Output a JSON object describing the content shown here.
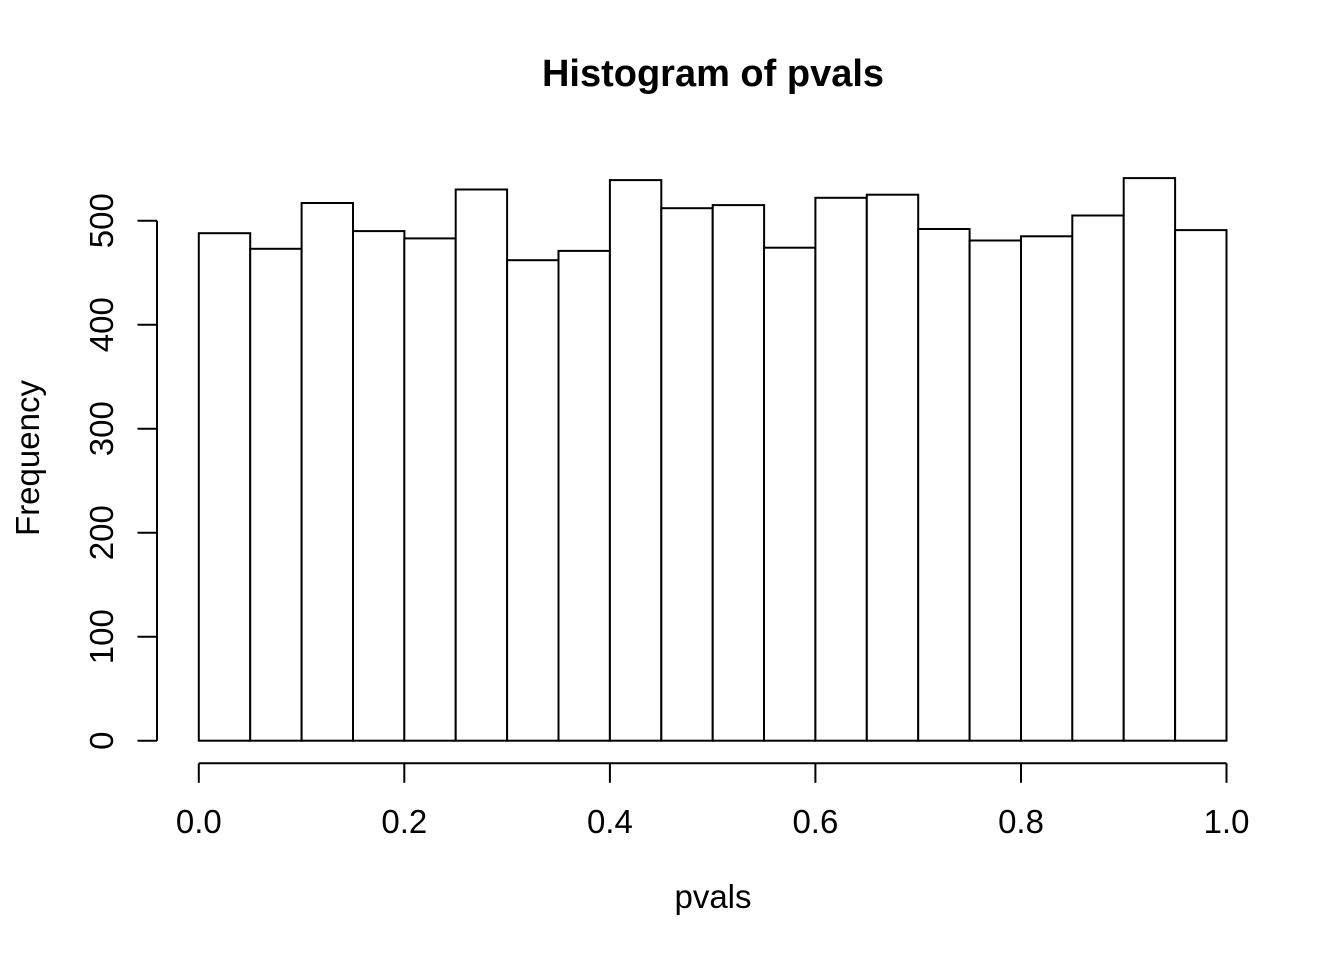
{
  "figure": {
    "background": "#ffffff",
    "text_color": "#000000"
  },
  "chart_data": {
    "type": "bar",
    "subtype": "histogram",
    "title": "Histogram of pvals",
    "xlabel": "pvals",
    "ylabel": "Frequency",
    "bin_edges": [
      0.0,
      0.05,
      0.1,
      0.15,
      0.2,
      0.25,
      0.3,
      0.35,
      0.4,
      0.45,
      0.5,
      0.55,
      0.6,
      0.65,
      0.7,
      0.75,
      0.8,
      0.85,
      0.9,
      0.95,
      1.0
    ],
    "counts": [
      488,
      473,
      517,
      490,
      483,
      530,
      462,
      471,
      539,
      512,
      515,
      474,
      522,
      525,
      492,
      481,
      485,
      505,
      541,
      491
    ],
    "x_ticks": {
      "values": [
        0.0,
        0.2,
        0.4,
        0.6,
        0.8,
        1.0
      ],
      "labels": [
        "0.0",
        "0.2",
        "0.4",
        "0.6",
        "0.8",
        "1.0"
      ]
    },
    "y_ticks": {
      "values": [
        0,
        100,
        200,
        300,
        400,
        500
      ],
      "labels": [
        "0",
        "100",
        "200",
        "300",
        "400",
        "500"
      ]
    },
    "xlim": [
      0.0,
      1.0
    ],
    "ylim": [
      0,
      550
    ],
    "grid": false,
    "legend": null,
    "bar_fill": "#ffffff",
    "bar_stroke": "#000000",
    "axis_color": "#000000"
  }
}
